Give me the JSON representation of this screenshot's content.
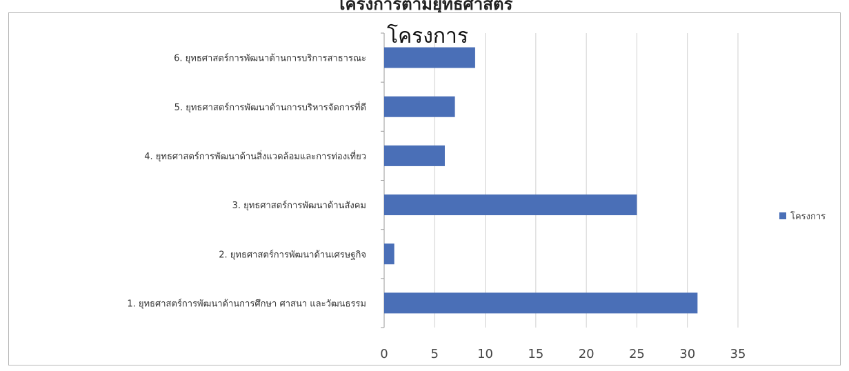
{
  "page": {
    "heading": "โครงการตามยุทธศาสตร์"
  },
  "chart_data": {
    "type": "bar",
    "orientation": "horizontal",
    "title": "โครงการ",
    "categories": [
      "1. ยุทธศาสตร์การพัฒนาด้านการศึกษา ศาสนา และวัฒนธรรม",
      "2. ยุทธศาสตร์การพัฒนาด้านเศรษฐกิจ",
      "3. ยุทธศาสตร์การพัฒนาด้านสังคม",
      "4. ยุทธศาสตร์การพัฒนาด้านสิ่งแวดล้อมและการท่องเที่ยว",
      "5. ยุทธศาสตร์การพัฒนาด้านการบริหารจัดการที่ดี",
      "6. ยุทธศาสตร์การพัฒนาด้านการบริการสาธารณะ"
    ],
    "series": [
      {
        "name": "โครงการ",
        "values": [
          31,
          1,
          25,
          6,
          7,
          9
        ],
        "color": "#4a6fb7"
      }
    ],
    "xlim": [
      0,
      35
    ],
    "xticks": [
      "0",
      "5",
      "10",
      "15",
      "20",
      "25",
      "30",
      "35"
    ],
    "grid": true,
    "legend": "right"
  }
}
